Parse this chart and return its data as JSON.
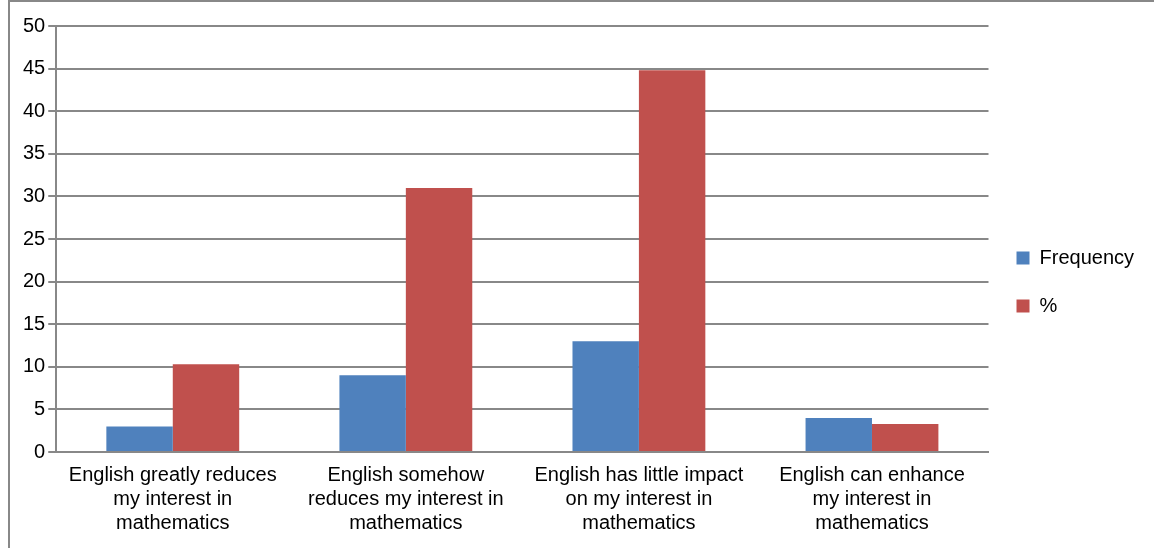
{
  "chart_data": {
    "type": "bar",
    "categories": [
      "English greatly reduces my interest in mathematics",
      "English somehow reduces my interest in mathematics",
      "English has little impact on my interest in mathematics",
      "English can enhance my interest in mathematics"
    ],
    "series": [
      {
        "name": "Frequency",
        "color": "#4f81bd",
        "values": [
          3,
          9,
          13,
          4
        ]
      },
      {
        "name": "%",
        "color": "#c0504d",
        "values": [
          10.3,
          31,
          44.8,
          3.3
        ]
      }
    ],
    "ylim": [
      0,
      50
    ],
    "yticks": [
      0,
      5,
      10,
      15,
      20,
      25,
      30,
      35,
      40,
      45,
      50
    ],
    "grid": "y",
    "legend": "right"
  }
}
